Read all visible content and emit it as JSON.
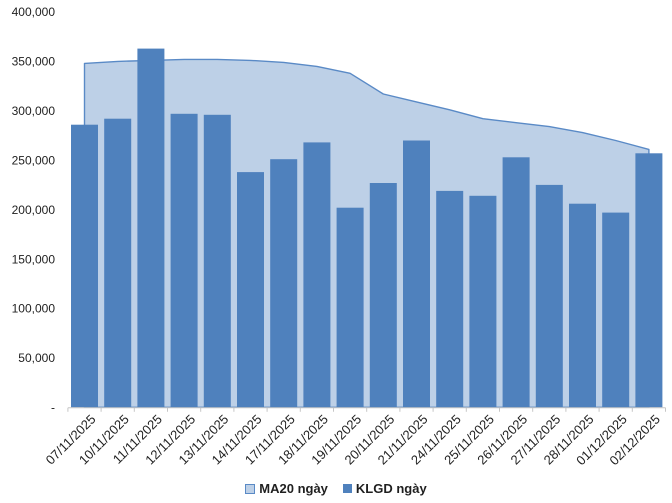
{
  "chart_data": {
    "type": "bar",
    "subtype": "bar-with-area-overlay",
    "title": "",
    "xlabel": "",
    "ylabel": "",
    "ylim": [
      0,
      400000
    ],
    "grid": false,
    "legend_position": "bottom",
    "y_tick_labels": [
      "400,000",
      "350,000",
      "300,000",
      "250,000",
      "200,000",
      "150,000",
      "100,000",
      "50,000",
      "-"
    ],
    "categories": [
      "07/11/2025",
      "10/11/2025",
      "11/11/2025",
      "12/11/2025",
      "13/11/2025",
      "14/11/2025",
      "17/11/2025",
      "18/11/2025",
      "19/11/2025",
      "20/11/2025",
      "21/11/2025",
      "24/11/2025",
      "25/11/2025",
      "26/11/2025",
      "27/11/2025",
      "28/11/2025",
      "01/12/2025",
      "02/12/2025"
    ],
    "series": [
      {
        "name": "MA20 ngày",
        "type": "area",
        "values": [
          348000,
          350000,
          351000,
          352000,
          352000,
          351000,
          349000,
          345000,
          338000,
          317000,
          309000,
          301000,
          292000,
          288000,
          284000,
          278000,
          270000,
          261000
        ]
      },
      {
        "name": "KLGD ngày",
        "type": "bar",
        "values": [
          286000,
          292000,
          363000,
          297000,
          296000,
          238000,
          251000,
          268000,
          202000,
          227000,
          270000,
          219000,
          214000,
          253000,
          225000,
          206000,
          197000,
          257000
        ]
      }
    ],
    "colors": {
      "bar_fill": "#4F81BD",
      "area_fill": "#BDD0E7",
      "area_stroke": "#5A8AC6",
      "axis_line": "#C6C6C6",
      "tick_label": "#1f1f1f"
    }
  }
}
